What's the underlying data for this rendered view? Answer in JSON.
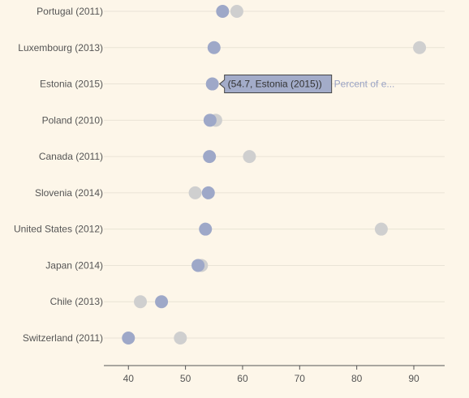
{
  "chart_data": {
    "type": "scatter",
    "categories": [
      "Portugal (2011)",
      "Luxembourg (2013)",
      "Estonia (2015)",
      "Poland (2010)",
      "Canada (2011)",
      "Slovenia (2014)",
      "United States (2012)",
      "Japan (2014)",
      "Chile (2013)",
      "Switzerland (2011)"
    ],
    "series": [
      {
        "name": "Percent of e...",
        "color": "#9ea8c8",
        "values": [
          56.5,
          55.0,
          54.7,
          54.3,
          54.2,
          54.0,
          53.5,
          52.2,
          45.8,
          40.0
        ]
      },
      {
        "color": "#cfcfcf",
        "values": [
          59.0,
          91.0,
          null,
          55.3,
          61.2,
          51.7,
          84.3,
          52.8,
          42.1,
          49.1
        ]
      }
    ],
    "x_ticks": [
      40,
      50,
      60,
      70,
      80,
      90
    ],
    "xlim": [
      35.7,
      95.4
    ],
    "grid": true,
    "tooltip": {
      "text": "(54.7, Estonia (2015))",
      "category_index": 2,
      "series_index": 0
    }
  }
}
